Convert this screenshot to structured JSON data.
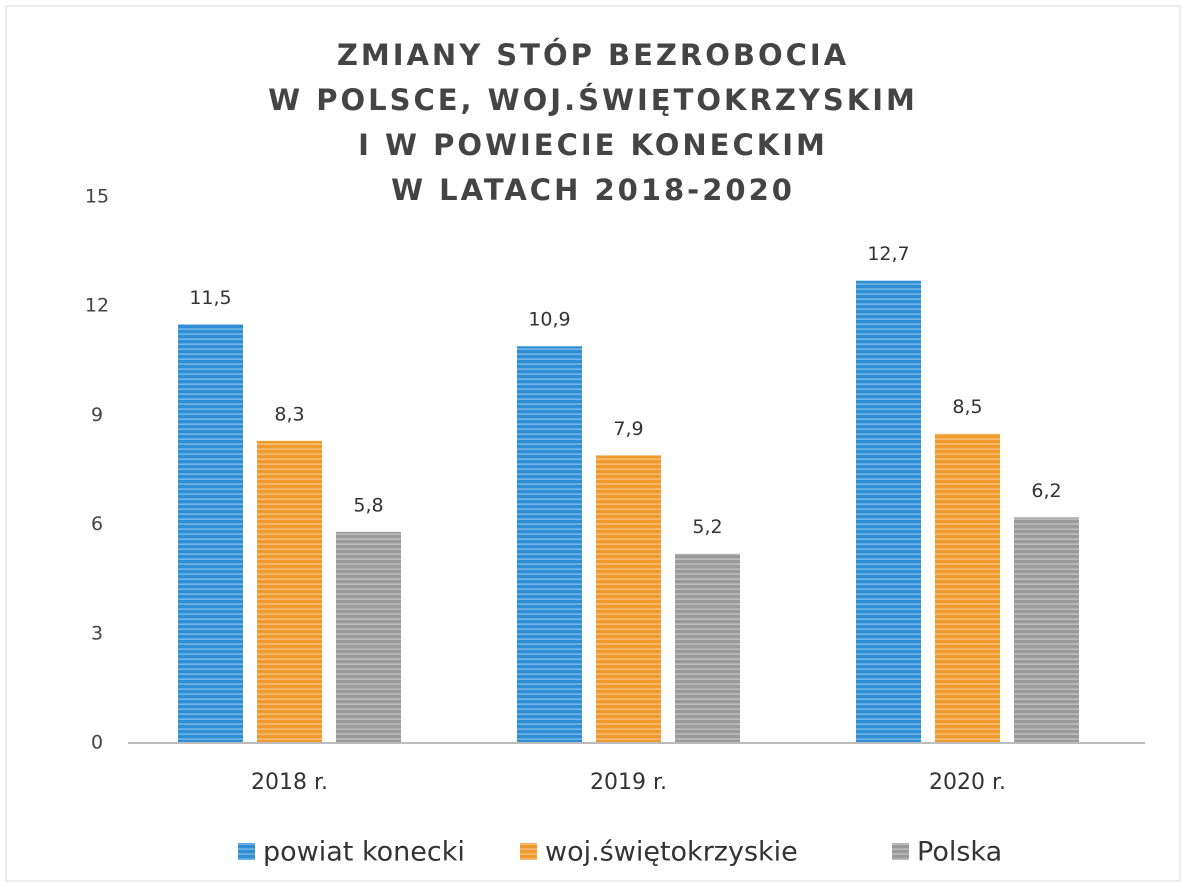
{
  "chart_data": {
    "type": "bar",
    "title": [
      "ZMIANY STÓP BEZROBOCIA",
      "W POLSCE, WOJ.ŚWIĘTOKRZYSKIM",
      "I W POWIECIE KONECKIM",
      "W LATACH 2018-2020"
    ],
    "categories": [
      "2018 r.",
      "2019 r.",
      "2020 r."
    ],
    "series": [
      {
        "name": "powiat konecki",
        "color": "#2e8fd6",
        "values": [
          11.5,
          10.9,
          12.7
        ],
        "value_labels": [
          "11,5",
          "10,9",
          "12,7"
        ]
      },
      {
        "name": "woj.świętokrzyskie",
        "color": "#f09a2e",
        "values": [
          8.3,
          7.9,
          8.5
        ],
        "value_labels": [
          "8,3",
          "7,9",
          "8,5"
        ]
      },
      {
        "name": "Polska",
        "color": "#9a9a9a",
        "values": [
          5.8,
          5.2,
          6.2
        ],
        "value_labels": [
          "5,8",
          "5,2",
          "6,2"
        ]
      }
    ],
    "ylim": [
      0,
      15
    ],
    "yticks": [
      0,
      3,
      6,
      9,
      12,
      15
    ],
    "grid": false,
    "legend": "bottom"
  }
}
